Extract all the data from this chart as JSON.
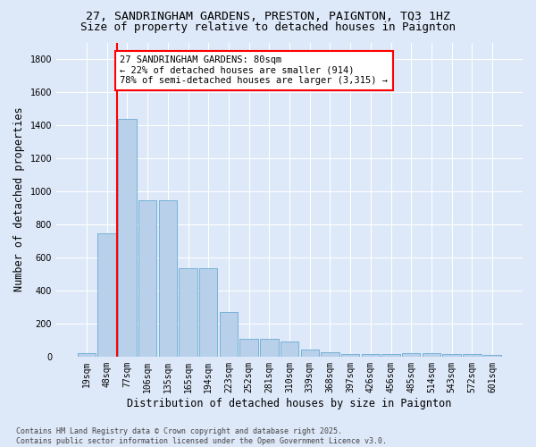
{
  "title_line1": "27, SANDRINGHAM GARDENS, PRESTON, PAIGNTON, TQ3 1HZ",
  "title_line2": "Size of property relative to detached houses in Paignton",
  "xlabel": "Distribution of detached houses by size in Paignton",
  "ylabel": "Number of detached properties",
  "categories": [
    "19sqm",
    "48sqm",
    "77sqm",
    "106sqm",
    "135sqm",
    "165sqm",
    "194sqm",
    "223sqm",
    "252sqm",
    "281sqm",
    "310sqm",
    "339sqm",
    "368sqm",
    "397sqm",
    "426sqm",
    "456sqm",
    "485sqm",
    "514sqm",
    "543sqm",
    "572sqm",
    "601sqm"
  ],
  "values": [
    20,
    745,
    1435,
    945,
    945,
    535,
    535,
    270,
    107,
    107,
    93,
    40,
    27,
    15,
    15,
    15,
    20,
    20,
    15,
    15,
    10
  ],
  "bar_color": "#b8d0ea",
  "bar_edge_color": "#6aaad4",
  "annotation_box_text": "27 SANDRINGHAM GARDENS: 80sqm\n← 22% of detached houses are smaller (914)\n78% of semi-detached houses are larger (3,315) →",
  "annotation_box_color": "white",
  "annotation_box_edge_color": "red",
  "vline_x_index": 2,
  "vline_color": "red",
  "ylim": [
    0,
    1900
  ],
  "yticks": [
    0,
    200,
    400,
    600,
    800,
    1000,
    1200,
    1400,
    1600,
    1800
  ],
  "footnote": "Contains HM Land Registry data © Crown copyright and database right 2025.\nContains public sector information licensed under the Open Government Licence v3.0.",
  "background_color": "#dde8f8",
  "grid_color": "#ffffff",
  "title_fontsize": 9.5,
  "subtitle_fontsize": 9,
  "axis_label_fontsize": 8.5,
  "tick_fontsize": 7,
  "footnote_fontsize": 6,
  "ann_fontsize": 7.5
}
